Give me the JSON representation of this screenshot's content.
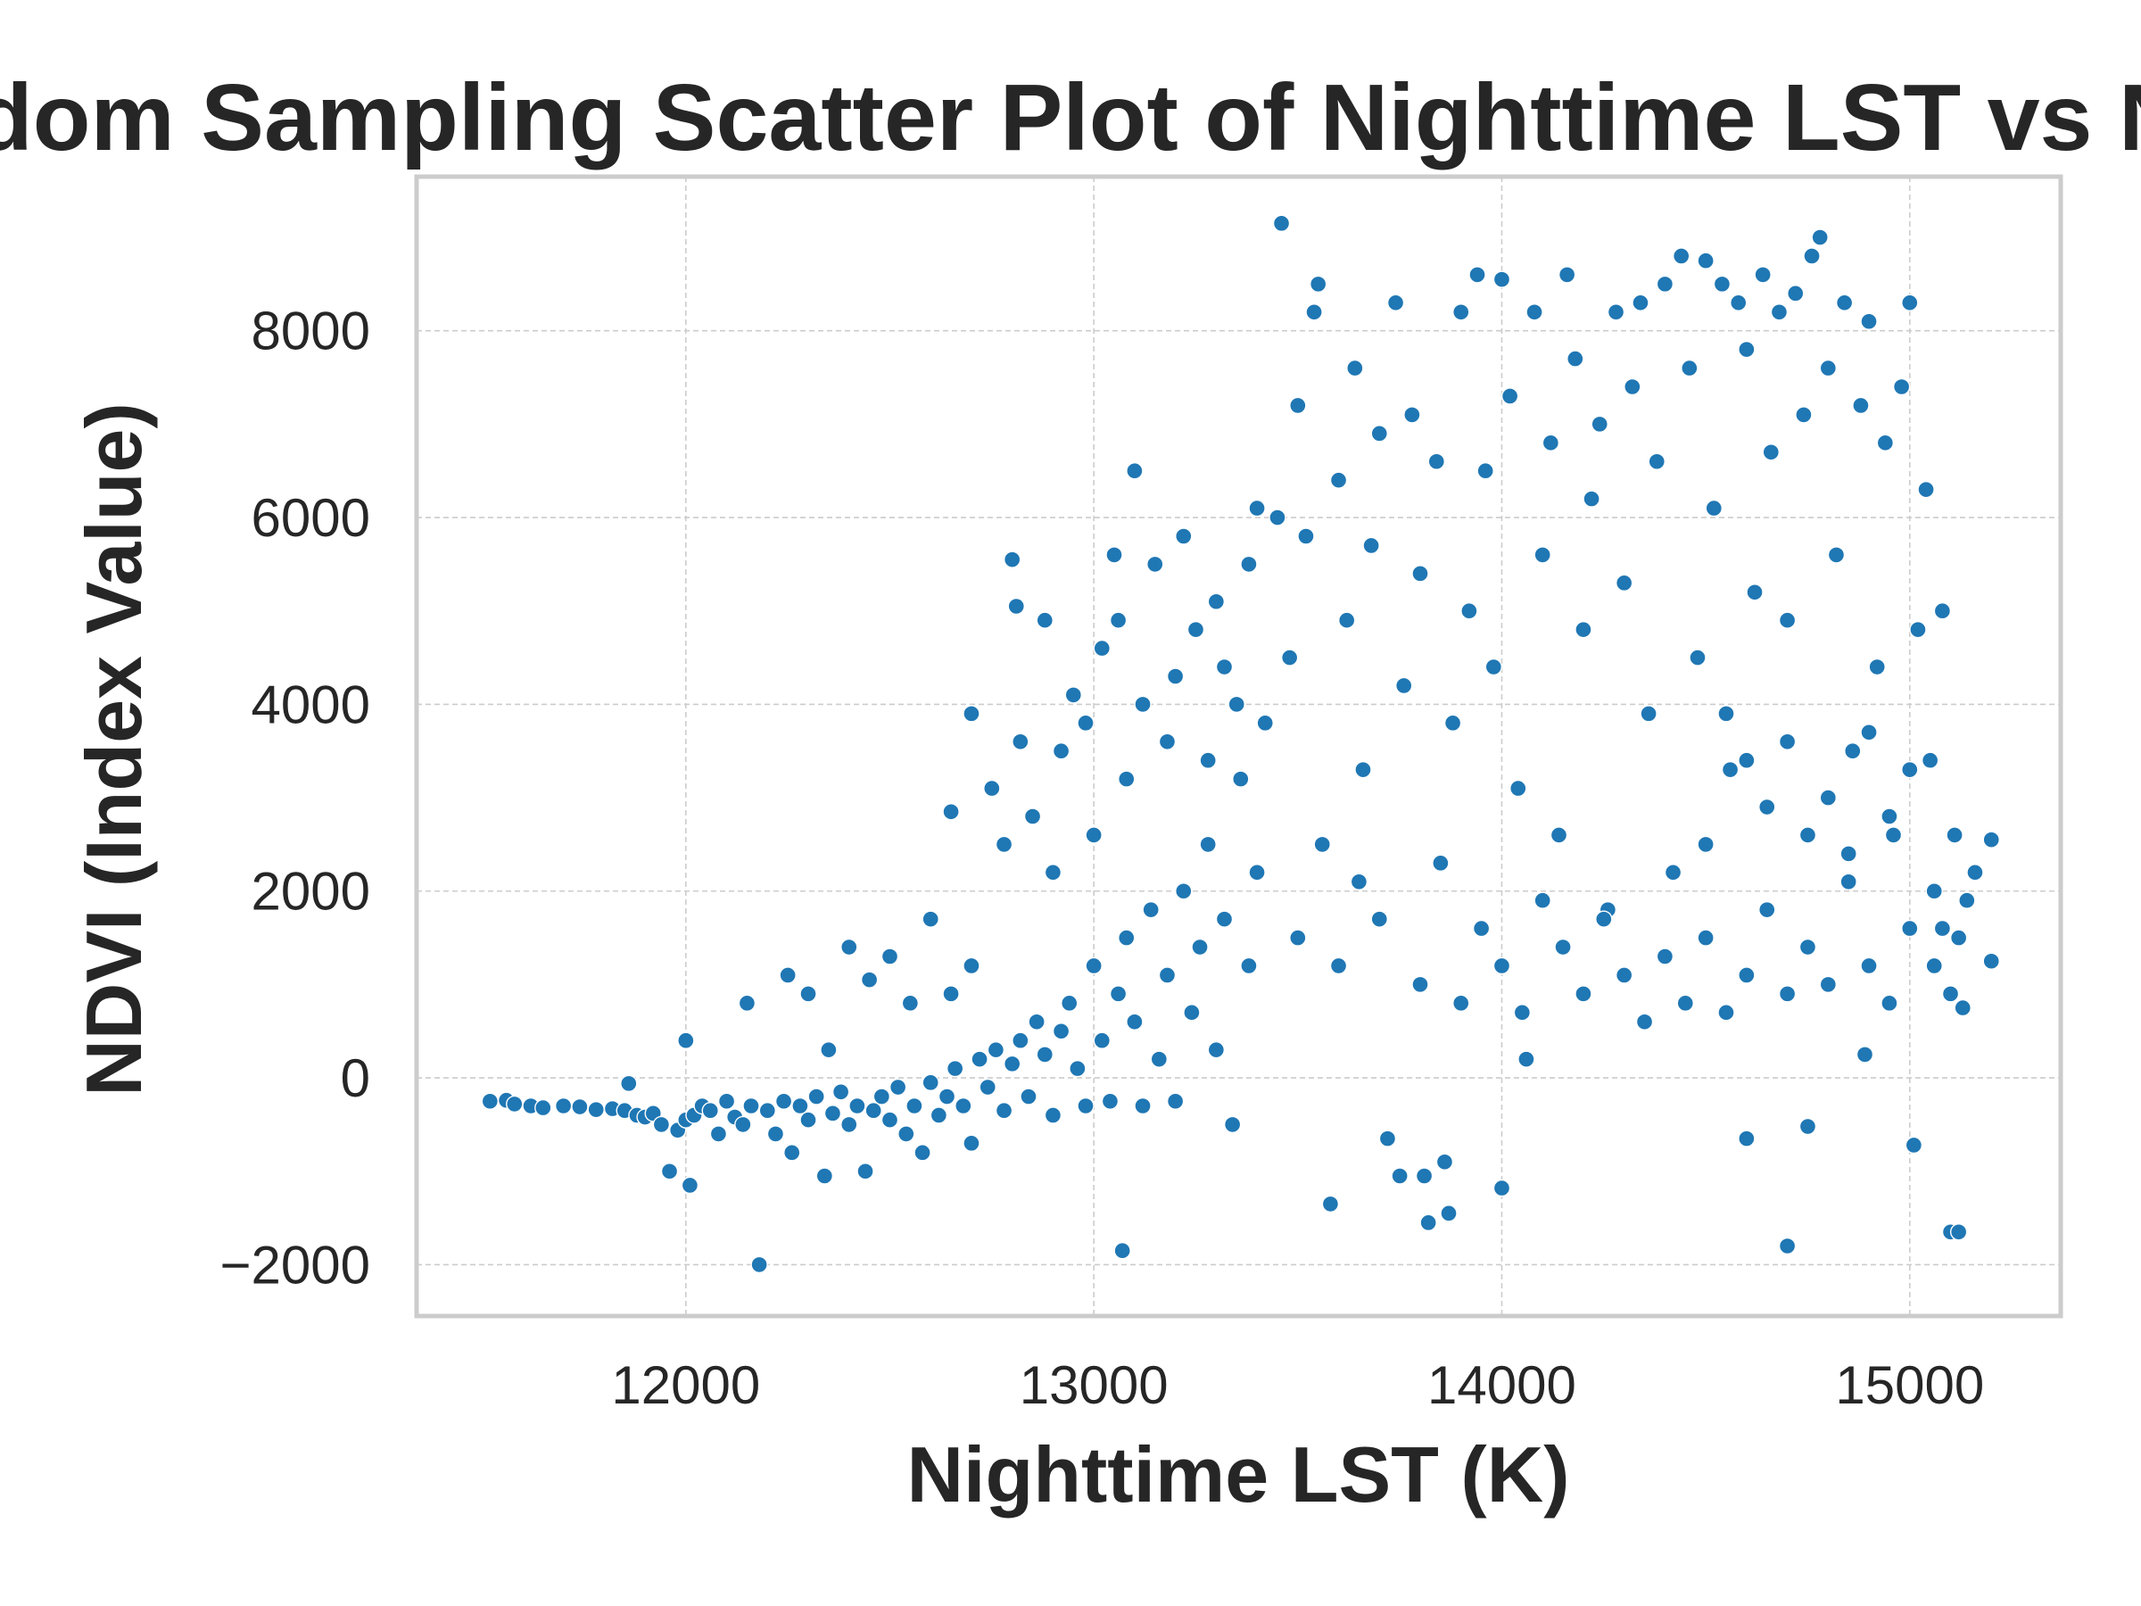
{
  "chart_data": {
    "type": "scatter",
    "title": "Random Sampling Scatter Plot of Nighttime LST vs NDVI",
    "xlabel": "Nighttime LST (K)",
    "ylabel": "NDVI (Index Value)",
    "xlim": [
      11340,
      15370
    ],
    "ylim": [
      -2550,
      9650
    ],
    "xticks": [
      12000,
      13000,
      14000,
      15000
    ],
    "xtick_labels": [
      "12000",
      "13000",
      "14000",
      "15000"
    ],
    "yticks": [
      -2000,
      0,
      2000,
      4000,
      6000,
      8000
    ],
    "ytick_labels": [
      "−2000",
      "0",
      "2000",
      "4000",
      "6000",
      "8000"
    ],
    "grid": true,
    "legend": "none",
    "point_color": "#1f77b4",
    "series": [
      {
        "points": [
          [
            11520,
            -250
          ],
          [
            11560,
            -240
          ],
          [
            11580,
            -280
          ],
          [
            11620,
            -300
          ],
          [
            11650,
            -320
          ],
          [
            11700,
            -300
          ],
          [
            11740,
            -310
          ],
          [
            11780,
            -340
          ],
          [
            11820,
            -330
          ],
          [
            11850,
            -350
          ],
          [
            11860,
            -60
          ],
          [
            11880,
            -400
          ],
          [
            11900,
            -420
          ],
          [
            11920,
            -380
          ],
          [
            11940,
            -500
          ],
          [
            11960,
            -1000
          ],
          [
            11980,
            -560
          ],
          [
            12000,
            -450
          ],
          [
            12010,
            -1150
          ],
          [
            12020,
            -400
          ],
          [
            12040,
            -300
          ],
          [
            12060,
            -350
          ],
          [
            12080,
            -600
          ],
          [
            12100,
            -250
          ],
          [
            12120,
            -420
          ],
          [
            12140,
            -500
          ],
          [
            12160,
            -300
          ],
          [
            12180,
            -2000
          ],
          [
            12200,
            -350
          ],
          [
            12220,
            -600
          ],
          [
            12240,
            -250
          ],
          [
            12260,
            -800
          ],
          [
            12280,
            -300
          ],
          [
            12300,
            -450
          ],
          [
            12320,
            -200
          ],
          [
            12340,
            -1050
          ],
          [
            12360,
            -380
          ],
          [
            12380,
            -150
          ],
          [
            12400,
            -500
          ],
          [
            12420,
            -300
          ],
          [
            12440,
            -1000
          ],
          [
            12460,
            -350
          ],
          [
            12480,
            -200
          ],
          [
            12500,
            -450
          ],
          [
            12520,
            -100
          ],
          [
            12540,
            -600
          ],
          [
            12560,
            -300
          ],
          [
            12580,
            -800
          ],
          [
            12600,
            -50
          ],
          [
            12620,
            -400
          ],
          [
            12640,
            -200
          ],
          [
            12660,
            100
          ],
          [
            12680,
            -300
          ],
          [
            12700,
            -700
          ],
          [
            12720,
            200
          ],
          [
            12740,
            -100
          ],
          [
            12760,
            300
          ],
          [
            12780,
            -350
          ],
          [
            12800,
            150
          ],
          [
            12820,
            400
          ],
          [
            12840,
            -200
          ],
          [
            12860,
            600
          ],
          [
            12880,
            250
          ],
          [
            12900,
            -400
          ],
          [
            12920,
            500
          ],
          [
            12940,
            800
          ],
          [
            12960,
            100
          ],
          [
            12980,
            -300
          ],
          [
            13000,
            1200
          ],
          [
            13020,
            400
          ],
          [
            13040,
            -250
          ],
          [
            13060,
            900
          ],
          [
            13070,
            -1850
          ],
          [
            13080,
            1500
          ],
          [
            13100,
            600
          ],
          [
            13120,
            -300
          ],
          [
            13140,
            1800
          ],
          [
            13160,
            200
          ],
          [
            13180,
            1100
          ],
          [
            13200,
            -250
          ],
          [
            13220,
            2000
          ],
          [
            13240,
            700
          ],
          [
            13260,
            1400
          ],
          [
            13280,
            2500
          ],
          [
            13300,
            300
          ],
          [
            13320,
            1700
          ],
          [
            13340,
            -500
          ],
          [
            13360,
            3200
          ],
          [
            13380,
            1200
          ],
          [
            13400,
            2200
          ],
          [
            12000,
            400
          ],
          [
            12150,
            800
          ],
          [
            12250,
            1100
          ],
          [
            12300,
            900
          ],
          [
            12350,
            300
          ],
          [
            12400,
            1400
          ],
          [
            12450,
            1050
          ],
          [
            12500,
            1300
          ],
          [
            12550,
            800
          ],
          [
            12600,
            1700
          ],
          [
            12650,
            900
          ],
          [
            12650,
            2850
          ],
          [
            12700,
            3900
          ],
          [
            12700,
            1200
          ],
          [
            12750,
            3100
          ],
          [
            12780,
            2500
          ],
          [
            12800,
            5550
          ],
          [
            12810,
            5050
          ],
          [
            12820,
            3600
          ],
          [
            12850,
            2800
          ],
          [
            12880,
            4900
          ],
          [
            12900,
            2200
          ],
          [
            12920,
            3500
          ],
          [
            12950,
            4100
          ],
          [
            12980,
            3800
          ],
          [
            13000,
            2600
          ],
          [
            13020,
            4600
          ],
          [
            13050,
            5600
          ],
          [
            13060,
            4900
          ],
          [
            13080,
            3200
          ],
          [
            13100,
            6500
          ],
          [
            13120,
            4000
          ],
          [
            13150,
            5500
          ],
          [
            13180,
            3600
          ],
          [
            13200,
            4300
          ],
          [
            13220,
            5800
          ],
          [
            13250,
            4800
          ],
          [
            13280,
            3400
          ],
          [
            13300,
            5100
          ],
          [
            13320,
            4400
          ],
          [
            13350,
            4000
          ],
          [
            13380,
            5500
          ],
          [
            13400,
            6100
          ],
          [
            13420,
            3800
          ],
          [
            13450,
            6000
          ],
          [
            13460,
            9150
          ],
          [
            13480,
            4500
          ],
          [
            13500,
            7200
          ],
          [
            13520,
            5800
          ],
          [
            13540,
            8200
          ],
          [
            13550,
            8500
          ],
          [
            13560,
            2500
          ],
          [
            13580,
            -1350
          ],
          [
            13600,
            6400
          ],
          [
            13620,
            4900
          ],
          [
            13640,
            7600
          ],
          [
            13660,
            3300
          ],
          [
            13680,
            5700
          ],
          [
            13700,
            6900
          ],
          [
            13720,
            -650
          ],
          [
            13740,
            8300
          ],
          [
            13750,
            -1050
          ],
          [
            13760,
            4200
          ],
          [
            13780,
            7100
          ],
          [
            13800,
            5400
          ],
          [
            13810,
            -1050
          ],
          [
            13820,
            -1550
          ],
          [
            13840,
            6600
          ],
          [
            13860,
            -900
          ],
          [
            13870,
            -1450
          ],
          [
            13880,
            3800
          ],
          [
            13900,
            8200
          ],
          [
            13920,
            5000
          ],
          [
            13940,
            8600
          ],
          [
            13960,
            6500
          ],
          [
            13980,
            4400
          ],
          [
            14000,
            8550
          ],
          [
            14000,
            -1180
          ],
          [
            14020,
            7300
          ],
          [
            14040,
            3100
          ],
          [
            14060,
            200
          ],
          [
            14080,
            8200
          ],
          [
            14100,
            5600
          ],
          [
            14120,
            6800
          ],
          [
            14140,
            2600
          ],
          [
            14160,
            8600
          ],
          [
            14180,
            7700
          ],
          [
            14200,
            4800
          ],
          [
            14220,
            6200
          ],
          [
            14240,
            7000
          ],
          [
            14260,
            1800
          ],
          [
            14280,
            8200
          ],
          [
            14300,
            5300
          ],
          [
            14320,
            7400
          ],
          [
            14340,
            8300
          ],
          [
            14360,
            3900
          ],
          [
            14380,
            6600
          ],
          [
            14400,
            8500
          ],
          [
            14420,
            2200
          ],
          [
            14440,
            8800
          ],
          [
            14460,
            7600
          ],
          [
            14480,
            4500
          ],
          [
            14500,
            8750
          ],
          [
            14520,
            6100
          ],
          [
            14540,
            8500
          ],
          [
            14560,
            3300
          ],
          [
            14580,
            8300
          ],
          [
            14600,
            -650
          ],
          [
            14600,
            7800
          ],
          [
            14620,
            5200
          ],
          [
            14640,
            8600
          ],
          [
            14660,
            6700
          ],
          [
            14680,
            8200
          ],
          [
            14700,
            -1800
          ],
          [
            14700,
            4900
          ],
          [
            14720,
            8400
          ],
          [
            14740,
            7100
          ],
          [
            14750,
            -520
          ],
          [
            14760,
            8800
          ],
          [
            14780,
            9000
          ],
          [
            14800,
            7600
          ],
          [
            14820,
            5600
          ],
          [
            14840,
            8300
          ],
          [
            14860,
            3500
          ],
          [
            14880,
            7200
          ],
          [
            14890,
            250
          ],
          [
            14900,
            8100
          ],
          [
            14920,
            4400
          ],
          [
            14940,
            6800
          ],
          [
            14960,
            2600
          ],
          [
            14980,
            7400
          ],
          [
            15000,
            8300
          ],
          [
            15010,
            -720
          ],
          [
            15020,
            4800
          ],
          [
            15040,
            6300
          ],
          [
            15060,
            2000
          ],
          [
            15080,
            5000
          ],
          [
            15100,
            -1650
          ],
          [
            15110,
            2600
          ],
          [
            15120,
            -1650
          ],
          [
            15140,
            1900
          ],
          [
            15160,
            2200
          ],
          [
            15200,
            2550
          ],
          [
            15200,
            1250
          ],
          [
            15100,
            900
          ],
          [
            15050,
            3400
          ],
          [
            15080,
            1600
          ],
          [
            15120,
            1500
          ],
          [
            15130,
            750
          ],
          [
            15060,
            1200
          ],
          [
            13500,
            1500
          ],
          [
            13600,
            1200
          ],
          [
            13650,
            2100
          ],
          [
            13700,
            1700
          ],
          [
            13800,
            1000
          ],
          [
            13850,
            2300
          ],
          [
            13900,
            800
          ],
          [
            13950,
            1600
          ],
          [
            14000,
            1200
          ],
          [
            14050,
            700
          ],
          [
            14100,
            1900
          ],
          [
            14150,
            1400
          ],
          [
            14200,
            900
          ],
          [
            14250,
            1700
          ],
          [
            14300,
            1100
          ],
          [
            14350,
            600
          ],
          [
            14400,
            1300
          ],
          [
            14450,
            800
          ],
          [
            14500,
            1500
          ],
          [
            14550,
            700
          ],
          [
            14600,
            1100
          ],
          [
            14650,
            1800
          ],
          [
            14700,
            900
          ],
          [
            14750,
            1400
          ],
          [
            14800,
            1000
          ],
          [
            14850,
            2100
          ],
          [
            14900,
            1200
          ],
          [
            14950,
            800
          ],
          [
            15000,
            1600
          ],
          [
            14550,
            3900
          ],
          [
            14600,
            3400
          ],
          [
            14650,
            2900
          ],
          [
            14700,
            3600
          ],
          [
            14750,
            2600
          ],
          [
            14800,
            3000
          ],
          [
            14850,
            2400
          ],
          [
            14900,
            3700
          ],
          [
            14950,
            2800
          ],
          [
            15000,
            3300
          ],
          [
            14500,
            2500
          ]
        ]
      }
    ]
  }
}
